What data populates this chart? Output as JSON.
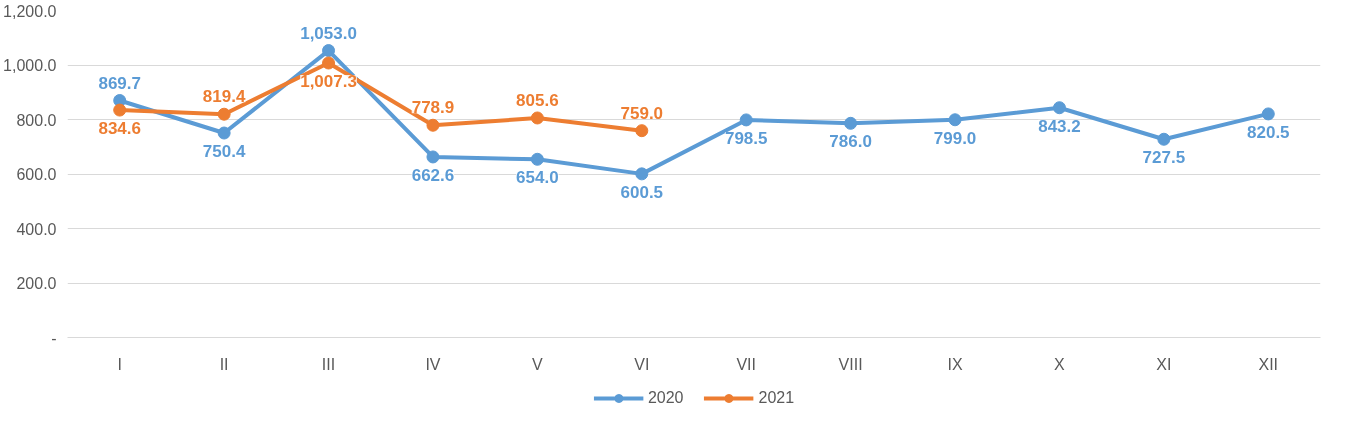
{
  "chart_data": {
    "type": "line",
    "categories": [
      "I",
      "II",
      "III",
      "IV",
      "V",
      "VI",
      "VII",
      "VIII",
      "IX",
      "X",
      "XI",
      "XII"
    ],
    "series": [
      {
        "name": "2020",
        "color": "#5b9bd5",
        "values": [
          869.7,
          750.4,
          1053.0,
          662.6,
          654.0,
          600.5,
          798.5,
          786.0,
          799.0,
          843.2,
          727.5,
          820.5
        ],
        "value_labels": [
          "869.7",
          "750.4",
          "1,053.0",
          "662.6",
          "654.0",
          "600.5",
          "798.5",
          "786.0",
          "799.0",
          "843.2",
          "727.5",
          "820.5"
        ]
      },
      {
        "name": "2021",
        "color": "#ed7d31",
        "values": [
          834.6,
          819.4,
          1007.3,
          778.9,
          805.6,
          759.0,
          null,
          null,
          null,
          null,
          null,
          null
        ],
        "value_labels": [
          "834.6",
          "819.4",
          "1,007.3",
          "778.9",
          "805.6",
          "759.0",
          null,
          null,
          null,
          null,
          null,
          null
        ]
      }
    ],
    "ylim": [
      0,
      1200
    ],
    "yticks": [
      {
        "value": 0,
        "label": "-"
      },
      {
        "value": 200,
        "label": "200.0"
      },
      {
        "value": 400,
        "label": "400.0"
      },
      {
        "value": 600,
        "label": "600.0"
      },
      {
        "value": 800,
        "label": "800.0"
      },
      {
        "value": 1000,
        "label": "1,000.0"
      },
      {
        "value": 1200,
        "label": "1,200.0"
      }
    ],
    "grid": "y",
    "legend": "bottom",
    "marker": "circle",
    "line_style": "solid"
  }
}
